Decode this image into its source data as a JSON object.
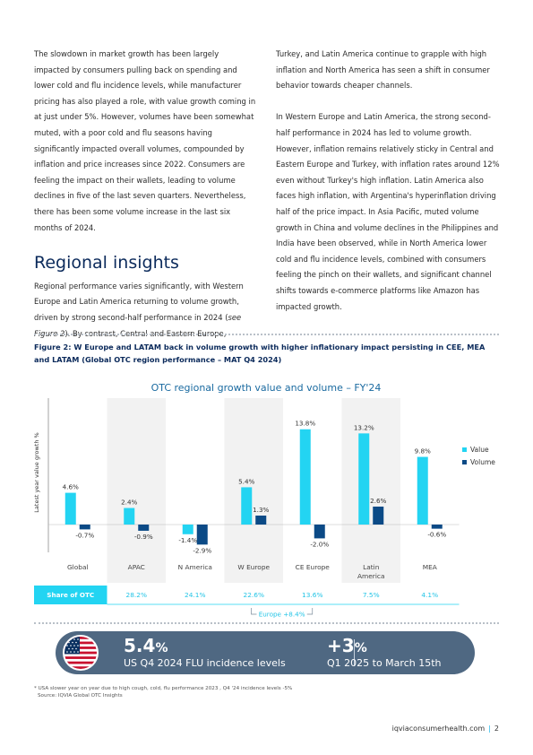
{
  "left_column": {
    "para1": "The slowdown in market growth has been largely impacted by consumers pulling back on spending and lower cold and flu incidence levels, while manufacturer pricing has also played a role, with value growth coming in at just under 5%. However, volumes have been somewhat muted, with a poor cold and flu seasons having significantly impacted overall volumes, compounded by inflation and price increases since 2022. Consumers are feeling the impact on their wallets, leading to volume declines in five of the last seven quarters. Nevertheless, there has been some volume increase in the last six months of 2024.",
    "heading": "Regional insights",
    "para2_start": "Regional performance varies significantly, with Western Europe and Latin America returning to volume growth, driven by strong second-half performance in 2024 (",
    "para2_ref": "see Figure 2",
    "para2_end": "). By contrast, Central and Eastern Europe,"
  },
  "right_column": {
    "para1": "Turkey, and Latin America continue to grapple with high inflation and North America has seen a shift in consumer behavior towards cheaper channels.",
    "para2": "In Western Europe and Latin America, the strong second-half performance in 2024 has led to volume growth. However, inflation remains relatively sticky in Central and Eastern Europe and Turkey, with inflation rates around 12% even without Turkey's high inflation. Latin America also faces high inflation, with Argentina's hyperinflation driving half of the price impact. In Asia Pacific, muted volume growth in China and volume declines in the Philippines and India have been observed, while in North America lower cold and flu incidence levels, combined with consumers feeling the pinch on their wallets, and significant channel shifts towards e-commerce platforms like Amazon has impacted growth."
  },
  "figure": {
    "title": "Figure 2: W Europe and LATAM back in volume growth with higher inflationary impact persisting in CEE, MEA and LATAM (Global OTC region performance – MAT Q4 2024)"
  },
  "chart_data": {
    "type": "bar",
    "title": "OTC regional growth value and volume – FY'24",
    "ylabel": "Latest year value growth %",
    "categories": [
      "Global",
      "APAC",
      "N America",
      "W Europe",
      "CE Europe",
      "Latin America",
      "MEA"
    ],
    "series": [
      {
        "name": "Value",
        "color": "#23d4f2",
        "values": [
          4.6,
          2.4,
          -1.4,
          5.4,
          13.8,
          13.2,
          9.8
        ]
      },
      {
        "name": "Volume",
        "color": "#0b4a86",
        "values": [
          -0.7,
          -0.9,
          -2.9,
          1.3,
          -2.0,
          2.6,
          -0.6
        ]
      }
    ],
    "value_labels": [
      [
        "4.6%",
        "2.4%",
        "-1.4%",
        "5.4%",
        "13.8%",
        "13.2%",
        "9.8%"
      ],
      [
        "-0.7%",
        "-0.9%",
        "-2.9%",
        "1.3%",
        "-2.0%",
        "2.6%",
        "-0.6%"
      ]
    ],
    "category_labels": [
      [
        "Global"
      ],
      [
        "APAC"
      ],
      [
        "N America"
      ],
      [
        "W Europe"
      ],
      [
        "CE Europe"
      ],
      [
        "Latin",
        "America"
      ],
      [
        "MEA"
      ]
    ],
    "shaded_categories": [
      1,
      3,
      5
    ],
    "legend_position": "right",
    "share_label": "Share of OTC",
    "share_values": [
      "",
      "28.2%",
      "24.1%",
      "22.6%",
      "13.6%",
      "7.5%",
      "4.1%"
    ],
    "bracket_label": "Europe +8.4%",
    "ylim": [
      -3.5,
      14.5
    ],
    "colors": {
      "share_bg": "#23d4f2",
      "share_text": "#23c4e6",
      "shade": "#f2f2f2",
      "title": "#1a6aa0"
    }
  },
  "callout": {
    "flag_icon": "us-flag-icon",
    "stat1_value": "5.4",
    "stat1_unit": "%",
    "stat1_label": "US Q4 2024 FLU incidence levels",
    "stat2_value": "+3",
    "stat2_unit": "%",
    "stat2_label": "Q1 2025 to March 15th"
  },
  "footnote": {
    "line1": "* USA slower year on year due to high cough, cold, flu performance 2023 , Q4 '24 incidence levels -5%",
    "line2": "Source: IQVIA Global OTC Insights"
  },
  "footer": {
    "site": "iqviaconsumerhealth.com",
    "separator": "|",
    "page_number": "2"
  }
}
